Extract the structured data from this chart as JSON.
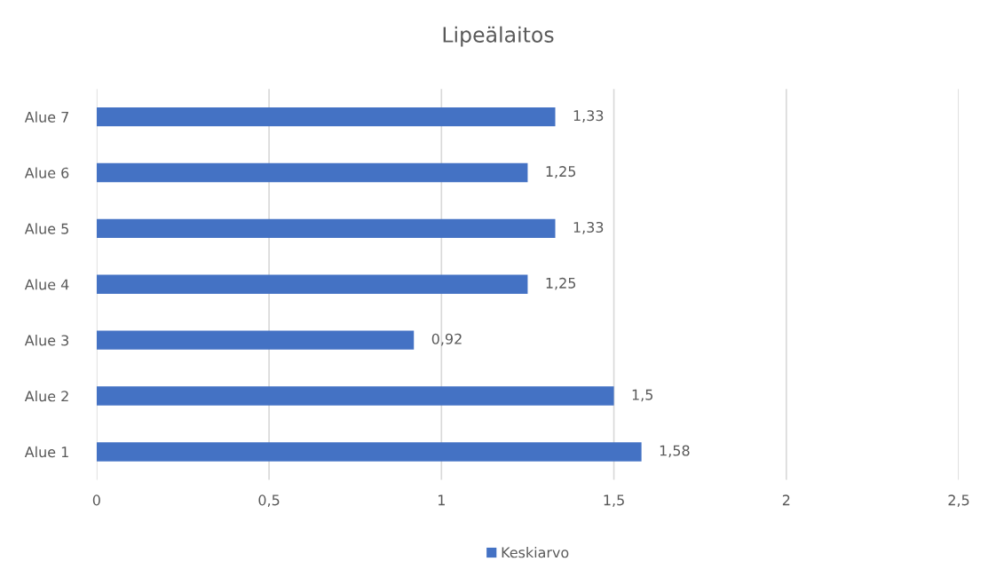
{
  "chart_data": {
    "type": "bar",
    "orientation": "horizontal",
    "title": "Lipeälaitos",
    "categories": [
      "Alue 7",
      "Alue 6",
      "Alue 5",
      "Alue 4",
      "Alue 3",
      "Alue 2",
      "Alue 1"
    ],
    "series": [
      {
        "name": "Keskiarvo",
        "color": "#4472c4",
        "values": [
          1.33,
          1.25,
          1.33,
          1.25,
          0.92,
          1.5,
          1.58
        ],
        "value_labels": [
          "1,33",
          "1,25",
          "1,33",
          "1,25",
          "0,92",
          "1,5",
          "1,58"
        ]
      }
    ],
    "xlim": [
      0,
      2.5
    ],
    "xticks": [
      0,
      {
        "value": 0.5,
        "label": "0,5"
      },
      1,
      {
        "value": 1.5,
        "label": "1,5"
      },
      2,
      {
        "value": 2.5,
        "label": "2,5"
      }
    ],
    "grid": "x",
    "legend": "bottom"
  }
}
